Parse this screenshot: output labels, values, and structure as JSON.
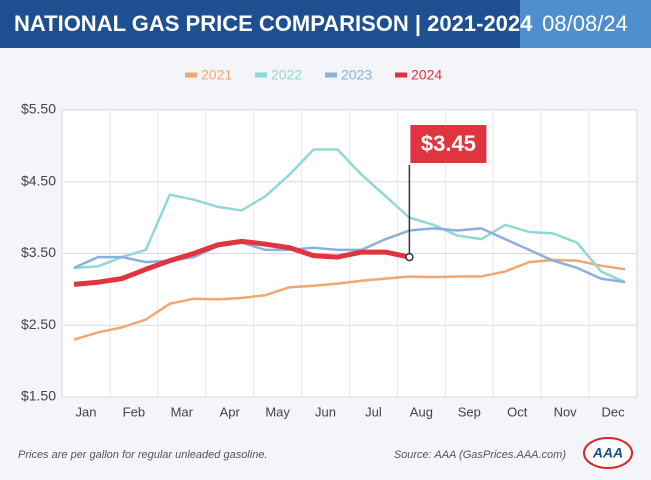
{
  "chart_data": {
    "type": "line",
    "title": "NATIONAL GAS PRICE COMPARISON | 2021-2024",
    "date": "08/08/24",
    "categories": [
      "Jan",
      null,
      "Feb",
      null,
      "Mar",
      null,
      "Apr",
      null,
      "May",
      null,
      "Jun",
      null,
      "Jul",
      null,
      "Aug",
      null,
      "Sep",
      null,
      "Oct",
      null,
      "Nov",
      null,
      "Dec",
      null
    ],
    "series": [
      {
        "name": "2021",
        "color": "#f4a671",
        "values": [
          2.3,
          2.4,
          2.47,
          2.58,
          2.8,
          2.87,
          2.86,
          2.88,
          2.92,
          3.03,
          3.05,
          3.08,
          3.12,
          3.15,
          3.18,
          3.17,
          3.18,
          3.18,
          3.25,
          3.38,
          3.41,
          3.4,
          3.33,
          3.28
        ]
      },
      {
        "name": "2022",
        "color": "#8fd8d5",
        "values": [
          3.3,
          3.32,
          3.45,
          3.55,
          4.32,
          4.25,
          4.15,
          4.1,
          4.3,
          4.6,
          4.95,
          4.95,
          4.6,
          4.3,
          4.0,
          3.9,
          3.75,
          3.7,
          3.9,
          3.8,
          3.78,
          3.65,
          3.25,
          3.1
        ]
      },
      {
        "name": "2023",
        "color": "#8bb0e0",
        "values": [
          3.3,
          3.45,
          3.45,
          3.38,
          3.4,
          3.45,
          3.6,
          3.65,
          3.55,
          3.55,
          3.58,
          3.55,
          3.55,
          3.7,
          3.82,
          3.85,
          3.82,
          3.85,
          3.7,
          3.55,
          3.4,
          3.3,
          3.15,
          3.1
        ]
      },
      {
        "name": "2024",
        "color": "#e0343f",
        "values": [
          3.07,
          3.1,
          3.15,
          3.28,
          3.4,
          3.5,
          3.62,
          3.67,
          3.63,
          3.58,
          3.47,
          3.45,
          3.52,
          3.52,
          3.45,
          null,
          null,
          null,
          null,
          null,
          null,
          null,
          null,
          null
        ]
      }
    ],
    "annotation": "$3.45",
    "ylim": [
      1.5,
      5.5
    ],
    "yticks": [
      {
        "value": 1.5,
        "label": "$1.50"
      },
      {
        "value": 2.5,
        "label": "$2.50"
      },
      {
        "value": 3.5,
        "label": "$3.50"
      },
      {
        "value": 4.5,
        "label": "$4.50"
      },
      {
        "value": 5.5,
        "label": "$5.50"
      }
    ],
    "grid": true,
    "note": "Prices are per gallon for regular unleaded gasoline.",
    "source": "Source: AAA (GasPrices.AAA.com)",
    "logo": "AAA"
  }
}
